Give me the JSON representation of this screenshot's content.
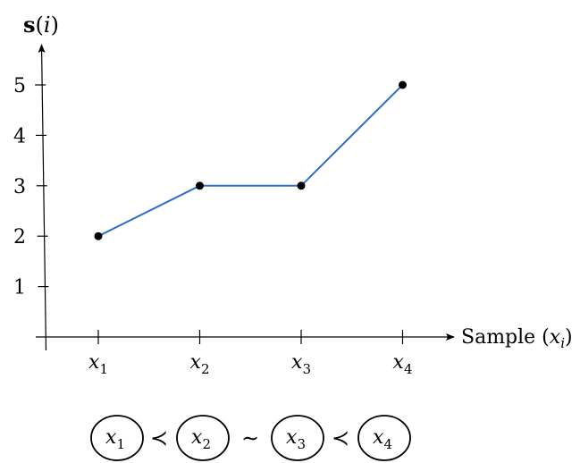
{
  "chart_data": {
    "type": "line",
    "title": "",
    "ylabel_bold": "s",
    "ylabel_rest": "(i)",
    "xlabel_text": "Sample (",
    "xlabel_var": "x",
    "xlabel_sub": "i",
    "xlabel_close": ")",
    "categories": [
      "x1",
      "x2",
      "x3",
      "x4"
    ],
    "category_labels": [
      {
        "base": "x",
        "sub": "1"
      },
      {
        "base": "x",
        "sub": "2"
      },
      {
        "base": "x",
        "sub": "3"
      },
      {
        "base": "x",
        "sub": "4"
      }
    ],
    "values": [
      2,
      3,
      3,
      5
    ],
    "yticks": [
      1,
      2,
      3,
      4,
      5
    ],
    "ylim": [
      0,
      6
    ],
    "grid": false,
    "line_color": "#2f6fc9",
    "marker_color": "#000000"
  },
  "ordering": {
    "nodes": [
      {
        "base": "x",
        "sub": "1"
      },
      {
        "base": "x",
        "sub": "2"
      },
      {
        "base": "x",
        "sub": "3"
      },
      {
        "base": "x",
        "sub": "4"
      }
    ],
    "relations": [
      "≺",
      "∼",
      "≺"
    ]
  }
}
